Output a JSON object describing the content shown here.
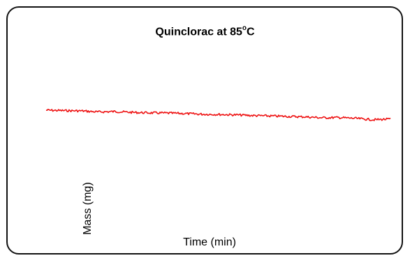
{
  "chart_data": {
    "type": "line",
    "title_prefix": "Quinclorac at 85",
    "title_degree": "o",
    "title_suffix": "C",
    "xlabel": "Time (min)",
    "ylabel": "Mass (mg)",
    "grid": false,
    "legend": "none",
    "series": [
      {
        "color": "#ee1111",
        "x": [
          0,
          0.05,
          0.1,
          0.15,
          0.2,
          0.25,
          0.3,
          0.35,
          0.4,
          0.45,
          0.5,
          0.55,
          0.6,
          0.65,
          0.7,
          0.75,
          0.8,
          0.85,
          0.9,
          0.95,
          1
        ],
        "y": [
          1.0,
          0.98,
          0.97,
          0.92,
          0.94,
          0.9,
          0.88,
          0.87,
          0.85,
          0.82,
          0.81,
          0.79,
          0.76,
          0.74,
          0.72,
          0.7,
          0.66,
          0.67,
          0.63,
          0.57,
          0.6
        ]
      }
    ]
  }
}
